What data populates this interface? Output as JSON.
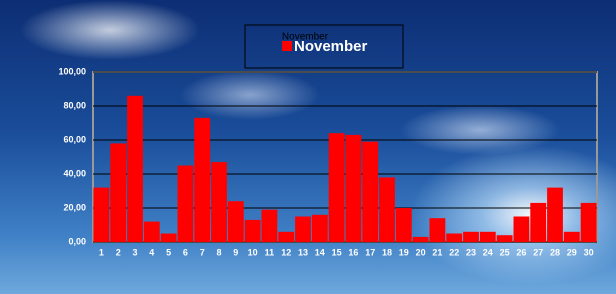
{
  "chart_data": {
    "type": "bar",
    "title": "November",
    "categories": [
      "1",
      "2",
      "3",
      "4",
      "5",
      "6",
      "7",
      "8",
      "9",
      "10",
      "11",
      "12",
      "13",
      "14",
      "15",
      "16",
      "17",
      "18",
      "19",
      "20",
      "21",
      "22",
      "23",
      "24",
      "25",
      "26",
      "27",
      "28",
      "29",
      "30"
    ],
    "series": [
      {
        "name": "November",
        "color": "#ff0000",
        "values": [
          32,
          58,
          86,
          12,
          5,
          45,
          73,
          47,
          24,
          13,
          19,
          6,
          15,
          16,
          64,
          63,
          59,
          38,
          20,
          3,
          14,
          5,
          6,
          6,
          4,
          15,
          23,
          32,
          6,
          23
        ]
      }
    ],
    "ylim": [
      0,
      100
    ],
    "yticks": [
      {
        "value": 0,
        "label": "0,00"
      },
      {
        "value": 20,
        "label": "20,00"
      },
      {
        "value": 40,
        "label": "40,00"
      },
      {
        "value": 60,
        "label": "60,00"
      },
      {
        "value": 80,
        "label": "80,00"
      },
      {
        "value": 100,
        "label": "100,00"
      }
    ],
    "grid": true
  }
}
